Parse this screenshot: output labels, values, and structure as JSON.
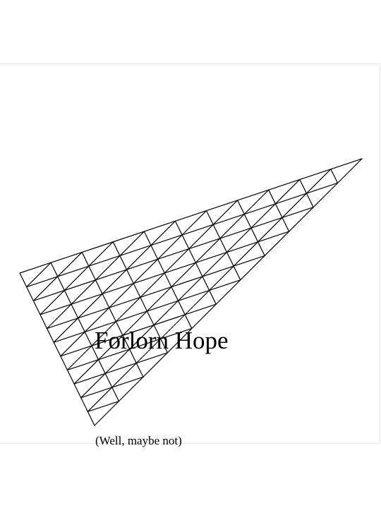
{
  "title": "Forlorn Hope",
  "subtitle": "(Well, maybe not)",
  "mesh": {
    "divisions": 11,
    "stroke_color": "#000000"
  }
}
